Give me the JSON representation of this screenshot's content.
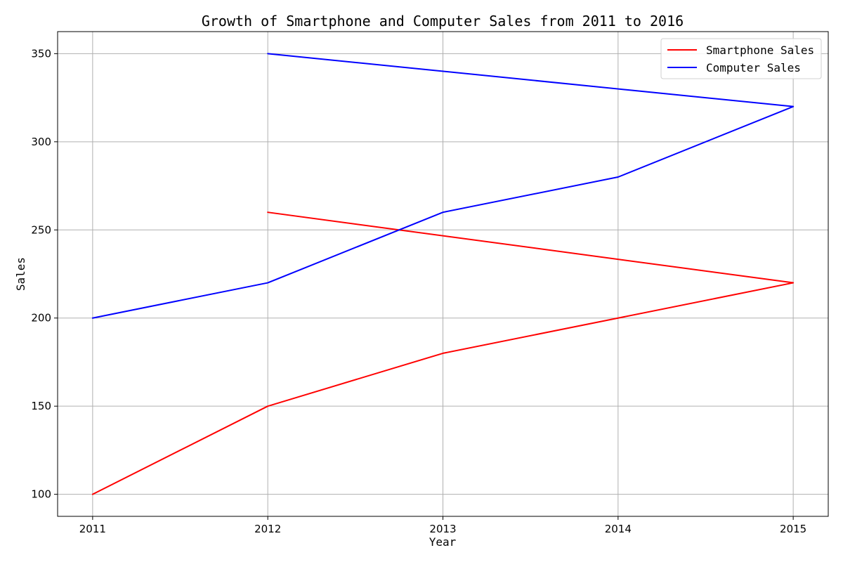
{
  "chart_data": {
    "type": "line",
    "title": "Growth of Smartphone and Computer Sales from 2011 to 2016",
    "xlabel": "Year",
    "ylabel": "Sales",
    "xlim": [
      2010.8,
      2015.2
    ],
    "ylim": [
      87.5,
      362.5
    ],
    "xticks": [
      2011,
      2012,
      2013,
      2014,
      2015
    ],
    "xtick_labels": [
      "2011",
      "2012",
      "2013",
      "2014",
      "2015"
    ],
    "yticks": [
      100,
      150,
      200,
      250,
      300,
      350
    ],
    "ytick_labels": [
      "100",
      "150",
      "200",
      "250",
      "300",
      "350"
    ],
    "grid": true,
    "legend_position": "top-right",
    "series": [
      {
        "name": "Smartphone Sales",
        "color": "#ff0000",
        "x": [
          2011,
          2012,
          2013,
          2014,
          2015,
          2012
        ],
        "y": [
          100,
          150,
          180,
          200,
          220,
          260
        ]
      },
      {
        "name": "Computer Sales",
        "color": "#0000ff",
        "x": [
          2011,
          2012,
          2013,
          2014,
          2015,
          2012
        ],
        "y": [
          200,
          220,
          260,
          280,
          320,
          350
        ]
      }
    ]
  }
}
